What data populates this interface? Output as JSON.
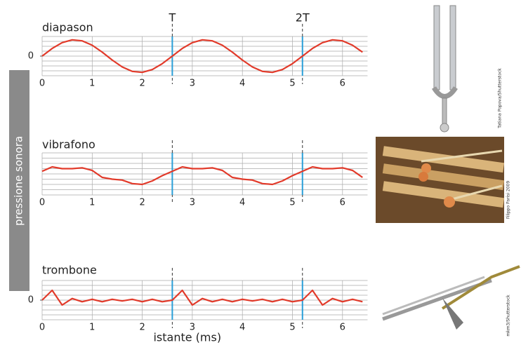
{
  "y_label": "pressione sonora",
  "credits": [
    "Tatiana Popova/Shutterstock",
    "Filippo Parisi 2009",
    "mkm3/Shutterstock"
  ],
  "chart_data": [
    {
      "type": "line",
      "title": "diapason",
      "x": [
        0,
        0.2,
        0.4,
        0.6,
        0.8,
        1.0,
        1.2,
        1.4,
        1.6,
        1.8,
        2.0,
        2.2,
        2.4,
        2.6,
        2.8,
        3.0,
        3.2,
        3.4,
        3.6,
        3.8,
        4.0,
        4.2,
        4.4,
        4.6,
        4.8,
        5.0,
        5.2,
        5.4,
        5.6,
        5.8,
        6.0,
        6.2,
        6.4
      ],
      "series": [
        {
          "color": "#e23a2a",
          "values": [
            0,
            0.465,
            0.823,
            0.993,
            0.935,
            0.663,
            0.239,
            -0.239,
            -0.663,
            -0.935,
            -0.993,
            -0.823,
            -0.465,
            0,
            0.465,
            0.823,
            0.993,
            0.935,
            0.663,
            0.239,
            -0.239,
            -0.663,
            -0.935,
            -0.993,
            -0.823,
            -0.465,
            0,
            0.465,
            0.823,
            0.993,
            0.935,
            0.663,
            0.239
          ]
        }
      ],
      "xlim": [
        0,
        6.5
      ],
      "ylim": [
        -1.2,
        1.2
      ],
      "xticks": [
        0,
        1,
        2,
        3,
        4,
        5,
        6
      ],
      "yticks": [
        0
      ],
      "vlines": [
        2.6,
        5.2
      ],
      "vline_labels": [
        "T",
        "2T"
      ],
      "grid": true
    },
    {
      "type": "line",
      "title": "vibrafono",
      "x": [
        0,
        0.2,
        0.4,
        0.6,
        0.8,
        1.0,
        1.2,
        1.4,
        1.6,
        1.8,
        2.0,
        2.2,
        2.4,
        2.6,
        2.8,
        3.0,
        3.2,
        3.4,
        3.6,
        3.8,
        4.0,
        4.2,
        4.4,
        4.6,
        4.8,
        5.0,
        5.2,
        5.4,
        5.6,
        5.8,
        6.0,
        6.2,
        6.4
      ],
      "series": [
        {
          "color": "#e23a2a",
          "values": [
            0.15,
            0.4,
            0.3,
            0.3,
            0.35,
            0.2,
            -0.2,
            -0.3,
            -0.35,
            -0.55,
            -0.6,
            -0.4,
            -0.1,
            0.15,
            0.4,
            0.3,
            0.3,
            0.35,
            0.2,
            -0.2,
            -0.3,
            -0.35,
            -0.55,
            -0.6,
            -0.4,
            -0.1,
            0.15,
            0.4,
            0.3,
            0.3,
            0.35,
            0.2,
            -0.2
          ]
        }
      ],
      "xlim": [
        0,
        6.5
      ],
      "ylim": [
        -1.2,
        1.2
      ],
      "xticks": [
        0,
        1,
        2,
        3,
        4,
        5,
        6
      ],
      "vlines": [
        2.6,
        5.2
      ],
      "grid": true
    },
    {
      "type": "line",
      "title": "trombone",
      "xlabel": "istante (ms)",
      "x": [
        0,
        0.2,
        0.4,
        0.6,
        0.8,
        1.0,
        1.2,
        1.4,
        1.6,
        1.8,
        2.0,
        2.2,
        2.4,
        2.6,
        2.8,
        3.0,
        3.2,
        3.4,
        3.6,
        3.8,
        4.0,
        4.2,
        4.4,
        4.6,
        4.8,
        5.0,
        5.2,
        5.4,
        5.6,
        5.8,
        6.0,
        6.2,
        6.4
      ],
      "series": [
        {
          "color": "#e23a2a",
          "values": [
            0,
            0.6,
            -0.3,
            0.1,
            -0.1,
            0.05,
            -0.1,
            0.05,
            -0.05,
            0.05,
            -0.1,
            0.05,
            -0.1,
            0,
            0.6,
            -0.3,
            0.1,
            -0.1,
            0.05,
            -0.1,
            0.05,
            -0.05,
            0.05,
            -0.1,
            0.05,
            -0.1,
            0,
            0.6,
            -0.3,
            0.1,
            -0.1,
            0.05,
            -0.1
          ]
        }
      ],
      "xlim": [
        0,
        6.5
      ],
      "ylim": [
        -1.2,
        1.2
      ],
      "xticks": [
        0,
        1,
        2,
        3,
        4,
        5,
        6
      ],
      "yticks": [
        0
      ],
      "vlines": [
        2.6,
        5.2
      ],
      "grid": true
    }
  ]
}
